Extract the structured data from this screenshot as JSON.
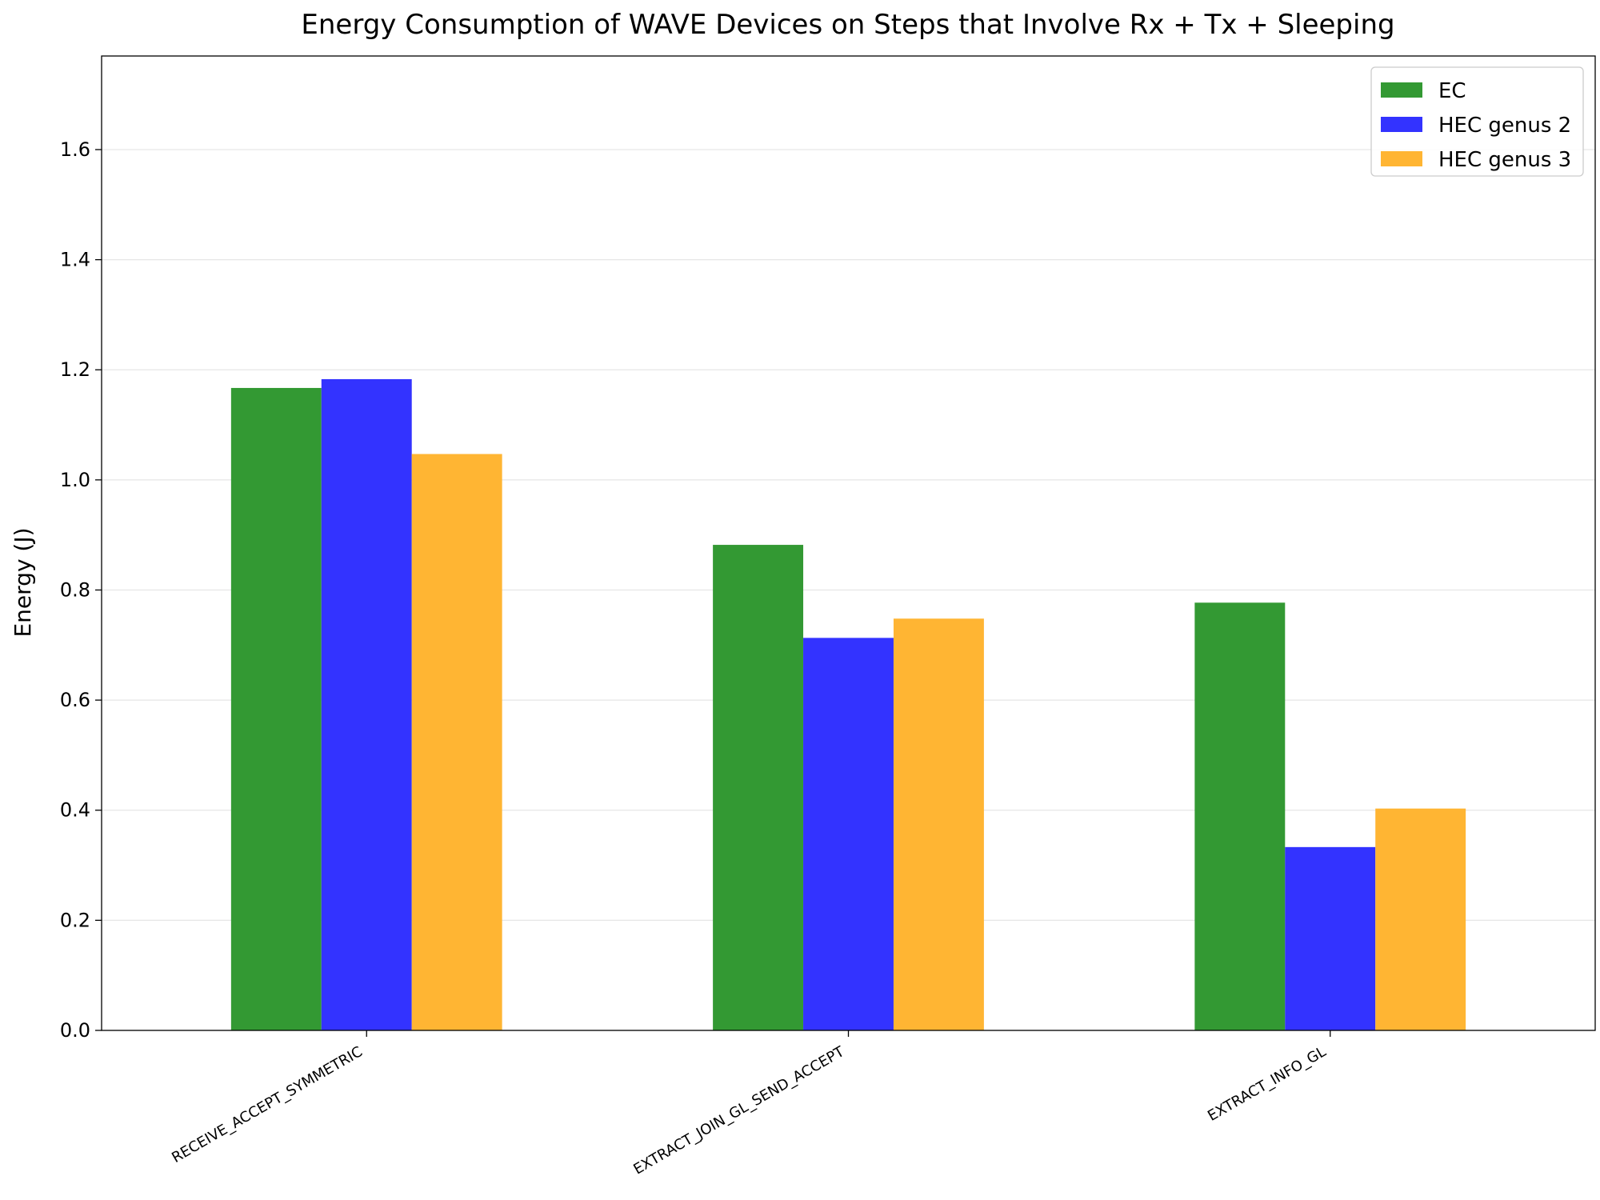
{
  "chart_data": {
    "type": "bar",
    "title": "Energy Consumption of WAVE Devices on Steps that Involve Rx + Tx + Sleeping",
    "xlabel": "",
    "ylabel": "Energy (J)",
    "ylim": [
      0,
      1.77
    ],
    "yticks": [
      0.0,
      0.2,
      0.4,
      0.6,
      0.8,
      1.0,
      1.2,
      1.4,
      1.6
    ],
    "ytick_labels": [
      "0.0",
      "0.2",
      "0.4",
      "0.6",
      "0.8",
      "1.0",
      "1.2",
      "1.4",
      "1.6"
    ],
    "categories": [
      "RECEIVE_ACCEPT_SYMMETRIC",
      "EXTRACT_JOIN_GL_SEND_ACCEPT",
      "EXTRACT_INFO_GL"
    ],
    "series": [
      {
        "name": "EC",
        "color": "#339933",
        "values": [
          1.167,
          0.882,
          0.777
        ]
      },
      {
        "name": "HEC genus 2",
        "color": "#3333ff",
        "values": [
          1.183,
          0.713,
          0.333
        ]
      },
      {
        "name": "HEC genus 3",
        "color": "#ffb533",
        "values": [
          1.047,
          0.748,
          0.403
        ]
      }
    ],
    "grid": "y-only",
    "legend_position": "top-right"
  }
}
